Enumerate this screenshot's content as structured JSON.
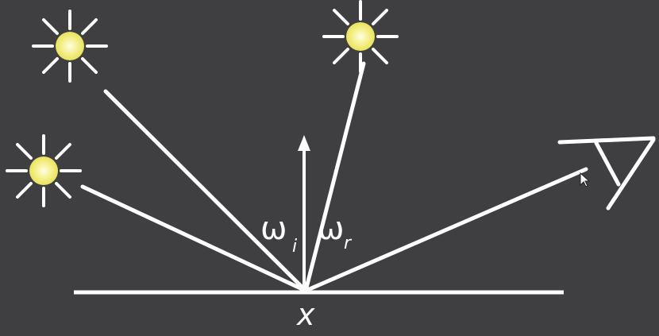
{
  "labels": {
    "incident": {
      "symbol": "ω",
      "subscript": "i"
    },
    "reflected": {
      "symbol": "ω",
      "subscript": "r"
    },
    "point": "x"
  },
  "colors": {
    "background": "#3f3e41",
    "lines": "#ffffff",
    "light_core": "#f5f08a",
    "light_glow": "#fbf7c0"
  },
  "icons": [
    "light-source-icon",
    "light-source-icon",
    "light-source-icon",
    "eye-icon",
    "mouse-cursor-icon"
  ]
}
